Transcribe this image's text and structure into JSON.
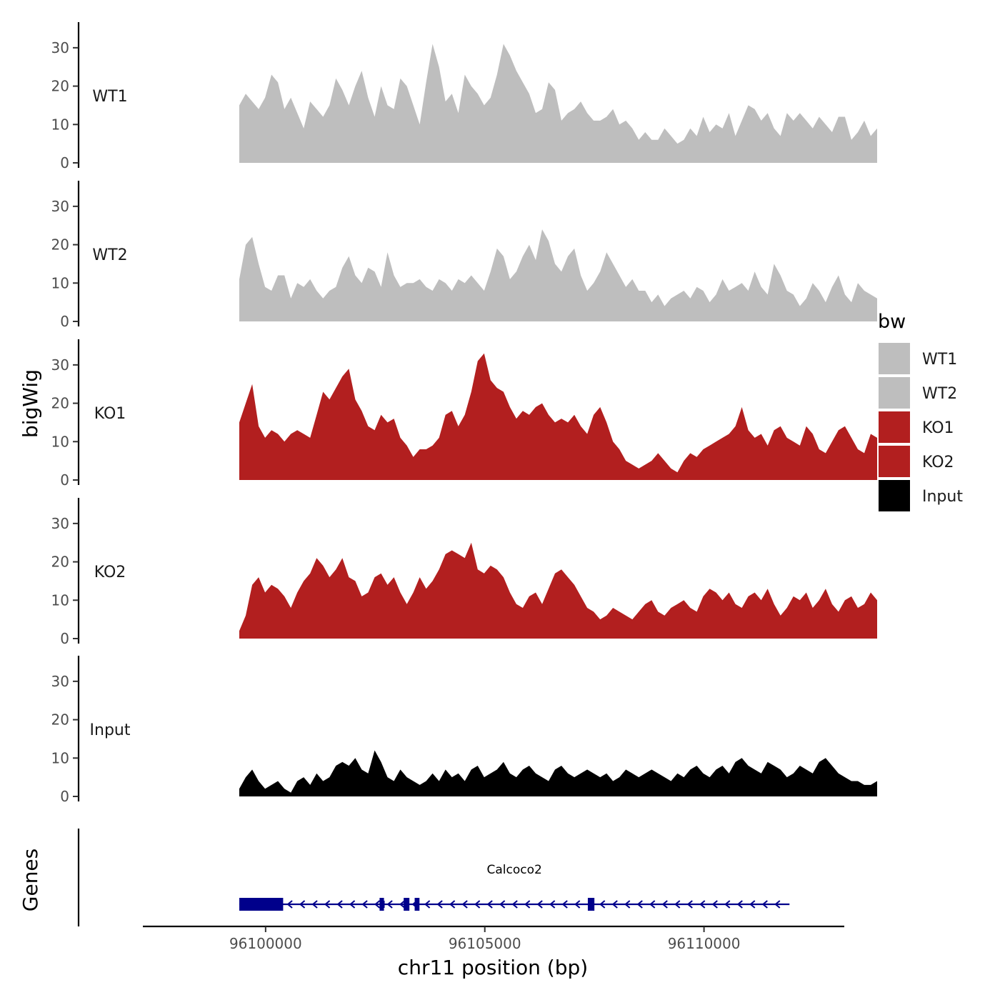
{
  "chart_data": {
    "type": "area",
    "title": "",
    "xlabel": "chr11 position (bp)",
    "ylabel": "bigWig",
    "gene_panel_label": "Genes",
    "x_range": [
      96099400,
      96113950
    ],
    "xlim": [
      96097200,
      96113200
    ],
    "x_ticks": [
      96100000,
      96105000,
      96110000
    ],
    "x_tick_labels": [
      "96100000",
      "96105000",
      "96110000"
    ],
    "ylim": [
      0,
      35
    ],
    "y_ticks": [
      0,
      10,
      20,
      30
    ],
    "y_tick_labels": [
      "0",
      "10",
      "20",
      "30"
    ],
    "grid": false,
    "legend": {
      "title": "bw",
      "position": "right",
      "entries": [
        {
          "label": "WT1",
          "color": "#bebebe"
        },
        {
          "label": "WT2",
          "color": "#bebebe"
        },
        {
          "label": "KO1",
          "color": "#b21f1f"
        },
        {
          "label": "KO2",
          "color": "#b21f1f"
        },
        {
          "label": "Input",
          "color": "#000000"
        }
      ]
    },
    "series": [
      {
        "name": "WT1",
        "color": "#bebebe",
        "values": [
          15,
          18,
          16,
          14,
          17,
          23,
          21,
          14,
          17,
          13,
          9,
          16,
          14,
          12,
          15,
          22,
          19,
          15,
          20,
          24,
          17,
          12,
          20,
          15,
          14,
          22,
          20,
          15,
          10,
          21,
          31,
          25,
          16,
          18,
          13,
          23,
          20,
          18,
          15,
          17,
          23,
          31,
          28,
          24,
          21,
          18,
          13,
          14,
          21,
          19,
          11,
          13,
          14,
          16,
          13,
          11,
          11,
          12,
          14,
          10,
          11,
          9,
          6,
          8,
          6,
          6,
          9,
          7,
          5,
          6,
          9,
          7,
          12,
          8,
          10,
          9,
          13,
          7,
          11,
          15,
          14,
          11,
          13,
          9,
          7,
          13,
          11,
          13,
          11,
          9,
          12,
          10,
          8,
          12,
          12,
          6,
          8,
          11,
          7,
          9
        ]
      },
      {
        "name": "WT2",
        "color": "#bebebe",
        "values": [
          11,
          20,
          22,
          15,
          9,
          8,
          12,
          12,
          6,
          10,
          9,
          11,
          8,
          6,
          8,
          9,
          14,
          17,
          12,
          10,
          14,
          13,
          9,
          18,
          12,
          9,
          10,
          10,
          11,
          9,
          8,
          11,
          10,
          8,
          11,
          10,
          12,
          10,
          8,
          13,
          19,
          17,
          11,
          13,
          17,
          20,
          16,
          24,
          21,
          15,
          13,
          17,
          19,
          12,
          8,
          10,
          13,
          18,
          15,
          12,
          9,
          11,
          8,
          8,
          5,
          7,
          4,
          6,
          7,
          8,
          6,
          9,
          8,
          5,
          7,
          11,
          8,
          9,
          10,
          8,
          13,
          9,
          7,
          15,
          12,
          8,
          7,
          4,
          6,
          10,
          8,
          5,
          9,
          12,
          7,
          5,
          10,
          8,
          7,
          6
        ]
      },
      {
        "name": "KO1",
        "color": "#b21f1f",
        "values": [
          15,
          20,
          25,
          14,
          11,
          13,
          12,
          10,
          12,
          13,
          12,
          11,
          17,
          23,
          21,
          24,
          27,
          29,
          21,
          18,
          14,
          13,
          17,
          15,
          16,
          11,
          9,
          6,
          8,
          8,
          9,
          11,
          17,
          18,
          14,
          17,
          23,
          31,
          33,
          26,
          24,
          23,
          19,
          16,
          18,
          17,
          19,
          20,
          17,
          15,
          16,
          15,
          17,
          14,
          12,
          17,
          19,
          15,
          10,
          8,
          5,
          4,
          3,
          4,
          5,
          7,
          5,
          3,
          2,
          5,
          7,
          6,
          8,
          9,
          10,
          11,
          12,
          14,
          19,
          13,
          11,
          12,
          9,
          13,
          14,
          11,
          10,
          9,
          14,
          12,
          8,
          7,
          10,
          13,
          14,
          11,
          8,
          7,
          12,
          11
        ]
      },
      {
        "name": "KO2",
        "color": "#b21f1f",
        "values": [
          2,
          6,
          14,
          16,
          12,
          14,
          13,
          11,
          8,
          12,
          15,
          17,
          21,
          19,
          16,
          18,
          21,
          16,
          15,
          11,
          12,
          16,
          17,
          14,
          16,
          12,
          9,
          12,
          16,
          13,
          15,
          18,
          22,
          23,
          22,
          21,
          25,
          18,
          17,
          19,
          18,
          16,
          12,
          9,
          8,
          11,
          12,
          9,
          13,
          17,
          18,
          16,
          14,
          11,
          8,
          7,
          5,
          6,
          8,
          7,
          6,
          5,
          7,
          9,
          10,
          7,
          6,
          8,
          9,
          10,
          8,
          7,
          11,
          13,
          12,
          10,
          12,
          9,
          8,
          11,
          12,
          10,
          13,
          9,
          6,
          8,
          11,
          10,
          12,
          8,
          10,
          13,
          9,
          7,
          10,
          11,
          8,
          9,
          12,
          10
        ]
      },
      {
        "name": "Input",
        "color": "#000000",
        "values": [
          2,
          5,
          7,
          4,
          2,
          3,
          4,
          2,
          1,
          4,
          5,
          3,
          6,
          4,
          5,
          8,
          9,
          8,
          10,
          7,
          6,
          12,
          9,
          5,
          4,
          7,
          5,
          4,
          3,
          4,
          6,
          4,
          7,
          5,
          6,
          4,
          7,
          8,
          5,
          6,
          7,
          9,
          6,
          5,
          7,
          8,
          6,
          5,
          4,
          7,
          8,
          6,
          5,
          6,
          7,
          6,
          5,
          6,
          4,
          5,
          7,
          6,
          5,
          6,
          7,
          6,
          5,
          4,
          6,
          5,
          7,
          8,
          6,
          5,
          7,
          8,
          6,
          9,
          10,
          8,
          7,
          6,
          9,
          8,
          7,
          5,
          6,
          8,
          7,
          6,
          9,
          10,
          8,
          6,
          5,
          4,
          4,
          3,
          3,
          4
        ]
      }
    ],
    "gene": {
      "name": "Calcoco2",
      "color": "#00008b",
      "start": 96099400,
      "end": 96111950,
      "strand": "-",
      "exons": [
        {
          "start": 96099400,
          "end": 96100400
        },
        {
          "start": 96102600,
          "end": 96102700
        },
        {
          "start": 96103150,
          "end": 96103280
        },
        {
          "start": 96103400,
          "end": 96103510
        },
        {
          "start": 96107350,
          "end": 96107500
        }
      ],
      "utr_blocks": [
        {
          "start": 96102650,
          "end": 96102700
        },
        {
          "start": 96103150,
          "end": 96103200
        }
      ]
    }
  }
}
